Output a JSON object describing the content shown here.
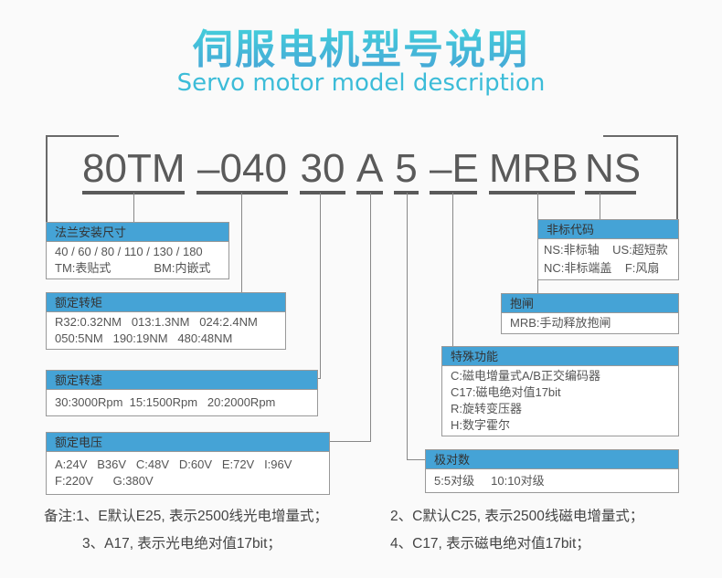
{
  "title": "伺服电机型号说明",
  "subtitle": "Servo motor model description",
  "model_segments": [
    "80TM",
    "–040",
    "30",
    "A",
    "5",
    "–E",
    "MRB",
    "NS"
  ],
  "boxes": {
    "flange": {
      "header": "法兰安装尺寸",
      "lines": [
        "40 / 60 / 80 / 110 / 130 / 180",
        "TM:表贴式             BM:内嵌式"
      ]
    },
    "torque": {
      "header": "额定转矩",
      "lines": [
        "R32:0.32NM   013:1.3NM   024:2.4NM",
        "050:5NM   190:19NM   480:48NM"
      ]
    },
    "speed": {
      "header": "额定转速",
      "lines": [
        "30:3000Rpm  15:1500Rpm   20:2000Rpm"
      ]
    },
    "voltage": {
      "header": "额定电压",
      "lines": [
        "A:24V   B36V   C:48V   D:60V   E:72V   I:96V",
        "F:220V      G:380V"
      ]
    },
    "nonstandard": {
      "header": "非标代码",
      "lines": [
        "NS:非标轴    US:超短款",
        "NC:非标端盖    F:风扇"
      ]
    },
    "brake": {
      "header": "抱闸",
      "lines": [
        "MRB:手动释放抱闸"
      ]
    },
    "special": {
      "header": "特殊功能",
      "lines": [
        "C:磁电增量式A/B正交编码器",
        "C17:磁电绝对值17bit",
        "R:旋转变压器",
        "H:数字霍尔"
      ]
    },
    "poles": {
      "header": "极对数",
      "lines": [
        "5:5对级     10:10对级"
      ]
    }
  },
  "notes": {
    "n1": "备注:1、E默认E25, 表示2500线光电增量式；",
    "n2": "2、C默认C25, 表示2500线磁电增量式；",
    "n3": "3、A17, 表示光电绝对值17bit；",
    "n4": "4、C17, 表示磁电绝对值17bit；"
  },
  "colors": {
    "header_bg": "#45a3d6",
    "title_gradient": [
      "#44d8dc",
      "#45a3d6"
    ]
  }
}
